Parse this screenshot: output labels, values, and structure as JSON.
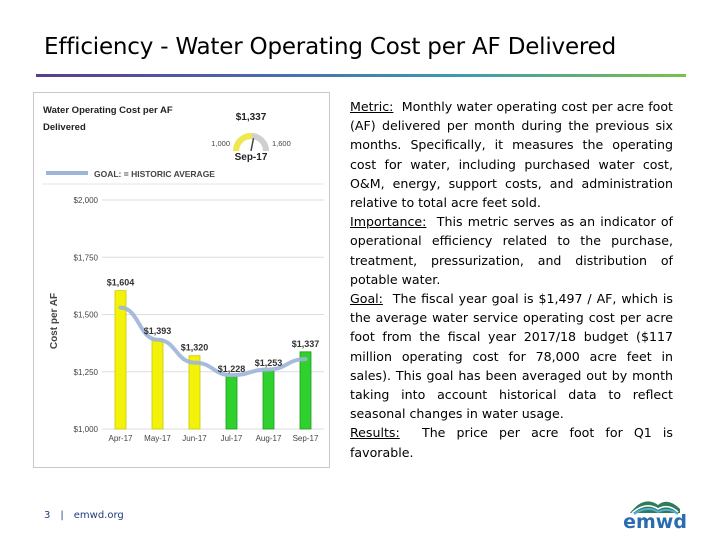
{
  "slide": {
    "title": "Efficiency - Water Operating Cost per AF Delivered",
    "page_number": "3",
    "separator": "|",
    "footer_site": "emwd.org",
    "logo_text": "emwd"
  },
  "gauge": {
    "title_line1": "Water Operating Cost per AF",
    "title_line2": "Delivered",
    "value_label": "$1,337",
    "min_label": "1,000",
    "max_label": "1,600",
    "period": "Sep-17",
    "value": 1337,
    "min": 1000,
    "max": 1600
  },
  "legend": {
    "goal_label": "GOAL: = HISTORIC AVERAGE"
  },
  "text": {
    "metric_heading": "Metric:",
    "metric_body": "Monthly water operating cost per acre foot (AF) delivered per month during the previous six months. Specifically, it measures the operating cost for water, including purchased water cost, O&M, energy, support costs, and administration relative to total acre feet sold.",
    "importance_heading": "Importance:",
    "importance_body": "This metric serves as an indicator of operational efficiency related to the purchase, treatment, pressurization, and distribution of potable water.",
    "goal_heading": "Goal:",
    "goal_body": "The fiscal year goal is $1,497 / AF, which is the average water service operating cost per acre foot from the fiscal year 2017/18 budget ($117 million operating cost for 78,000 acre feet in sales). This goal has been averaged out by month taking into account historical data to reflect seasonal changes in water usage.",
    "results_heading": "Results:",
    "results_body": "The price per acre foot for Q1 is favorable."
  },
  "colors": {
    "bar_yellow": "#f2f20a",
    "bar_green": "#2fd12f",
    "goal_line": "#9db5d9",
    "grid": "#dddddd",
    "axis_text": "#444444"
  },
  "chart_data": {
    "type": "bar",
    "ylabel": "Cost per AF",
    "categories": [
      "Apr-17",
      "May-17",
      "Jun-17",
      "Jul-17",
      "Aug-17",
      "Sep-17"
    ],
    "values": [
      1604,
      1393,
      1320,
      1228,
      1253,
      1337
    ],
    "data_labels": [
      "$1,604",
      "$1,393",
      "$1,320",
      "$1,228",
      "$1,253",
      "$1,337"
    ],
    "bar_colors": [
      "yellow",
      "yellow",
      "yellow",
      "green",
      "green",
      "green"
    ],
    "goal_series": {
      "name": "GOAL: = HISTORIC AVERAGE",
      "values": [
        1530,
        1390,
        1290,
        1235,
        1260,
        1305
      ]
    },
    "ylim": [
      1000,
      2000
    ],
    "yticks": [
      1000,
      1250,
      1500,
      1750,
      2000
    ],
    "ytick_labels": [
      "$1,000",
      "$1,250",
      "$1,500",
      "$1,750",
      "$2,000"
    ],
    "grid": true
  }
}
